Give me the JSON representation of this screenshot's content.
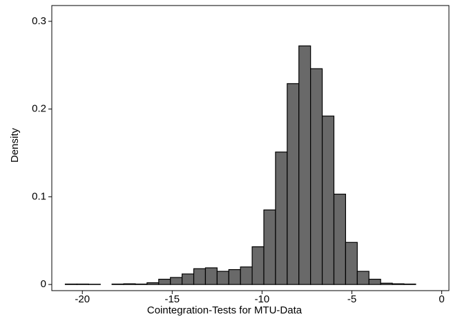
{
  "chart_data": {
    "type": "histogram",
    "x_label": "Cointegration-Tests for MTU-Data",
    "y_label": "Density",
    "bins": [
      -20.95,
      -20.3,
      -19.65,
      -19,
      -18.35,
      -17.7,
      -17.05,
      -16.4,
      -15.75,
      -15.1,
      -14.45,
      -13.8,
      -13.15,
      -12.5,
      -11.85,
      -11.2,
      -10.55,
      -9.9,
      -9.25,
      -8.6,
      -7.95,
      -7.3,
      -6.65,
      -6,
      -5.35,
      -4.7,
      -4.05,
      -3.4,
      -2.75,
      -2.1,
      -1.45
    ],
    "values": [
      0.0005,
      0.0005,
      0.0003,
      0,
      0.0005,
      0.0008,
      0.0005,
      0.002,
      0.006,
      0.008,
      0.012,
      0.018,
      0.019,
      0.015,
      0.017,
      0.02,
      0.043,
      0.085,
      0.151,
      0.229,
      0.272,
      0.246,
      0.192,
      0.103,
      0.048,
      0.015,
      0.006,
      0.0015,
      0.0008,
      0.0005
    ],
    "color": "#696969",
    "xlim": [
      -21.7,
      0.4
    ],
    "xticks": [
      -20,
      -15,
      -10,
      -5,
      0
    ],
    "ylim": [
      -0.007,
      0.318
    ],
    "yticks": [
      0,
      0.1,
      0.2,
      0.3
    ]
  }
}
